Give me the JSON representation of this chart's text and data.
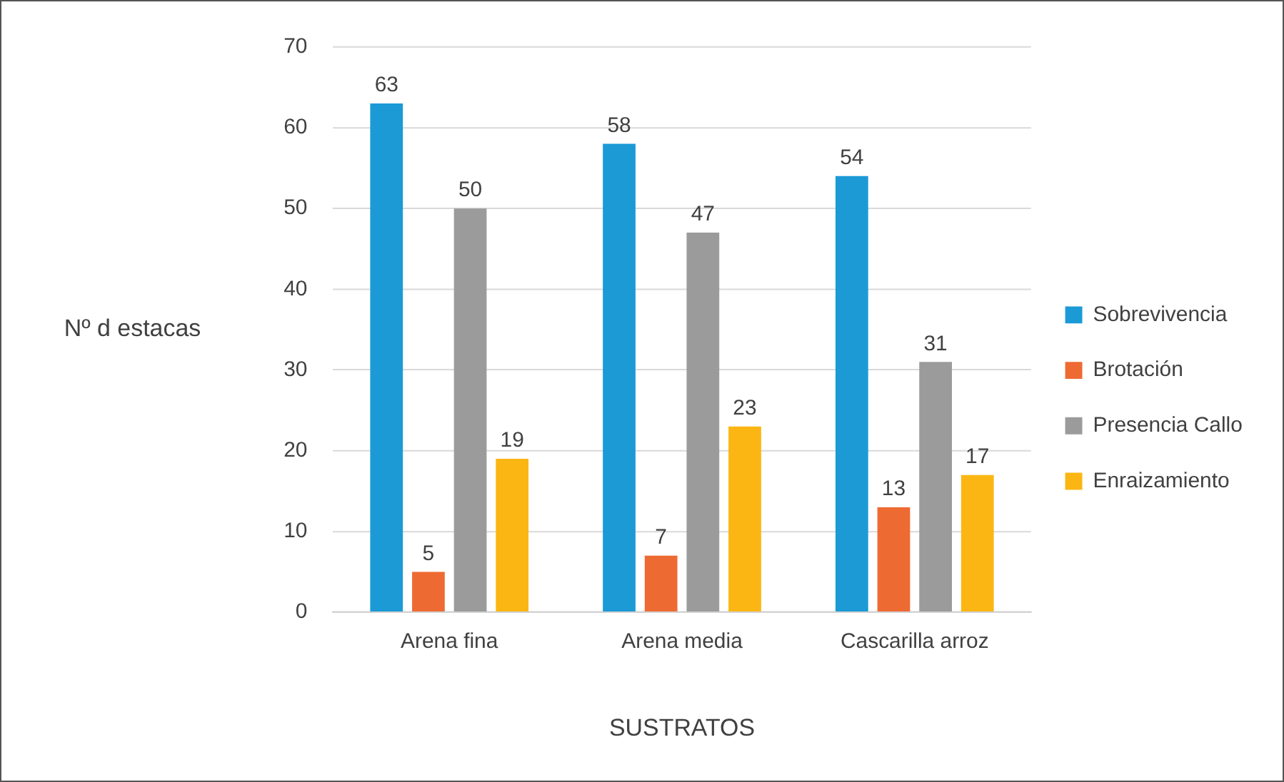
{
  "chart_data": {
    "type": "bar",
    "xlabel": "SUSTRATOS",
    "ylabel": "Nº d estacas",
    "categories": [
      "Arena fina",
      "Arena media",
      "Cascarilla arroz"
    ],
    "series": [
      {
        "name": "Sobrevivencia",
        "color": "#1b9ad6",
        "values": [
          63,
          58,
          54
        ]
      },
      {
        "name": "Brotación",
        "color": "#ee6a33",
        "values": [
          5,
          7,
          13
        ]
      },
      {
        "name": "Presencia Callo",
        "color": "#9b9b9b",
        "values": [
          50,
          47,
          31
        ]
      },
      {
        "name": "Enraizamiento",
        "color": "#fbb614",
        "values": [
          19,
          23,
          17
        ]
      }
    ],
    "ylim": [
      0,
      70
    ],
    "yticks": [
      0,
      10,
      20,
      30,
      40,
      50,
      60,
      70
    ],
    "grid": "y",
    "legend": "right",
    "data_labels": true
  }
}
